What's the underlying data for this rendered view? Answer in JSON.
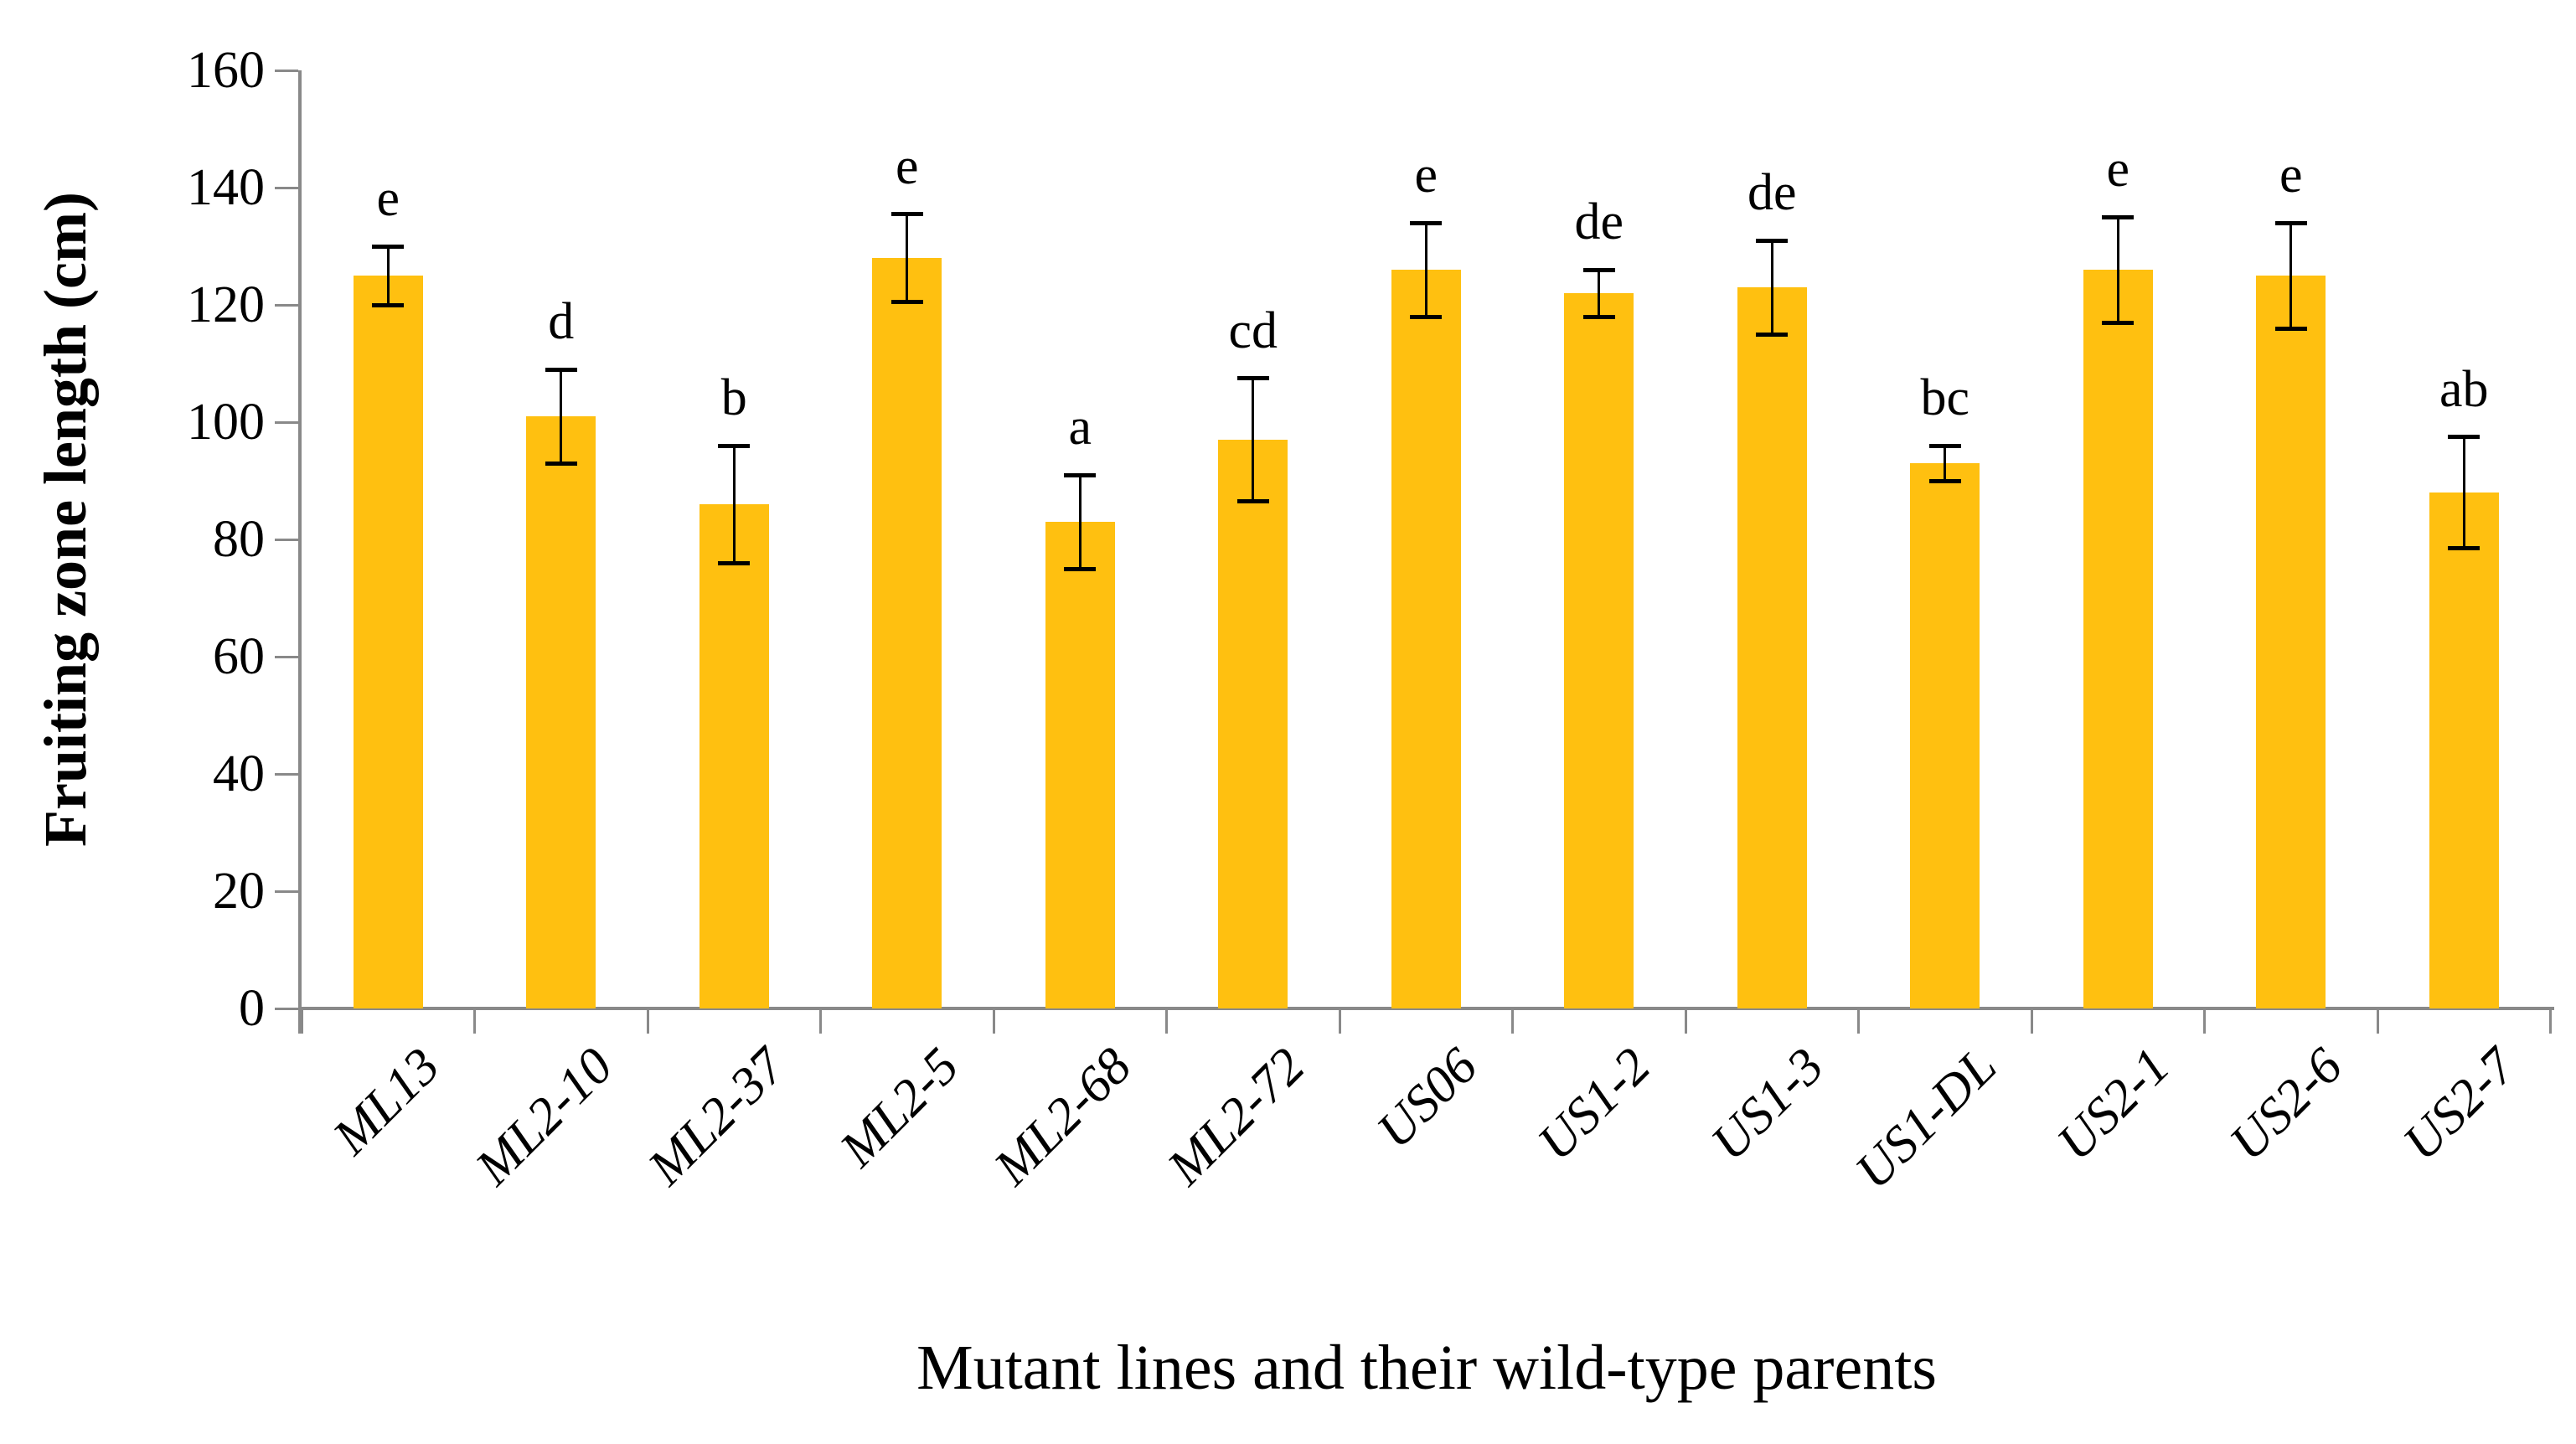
{
  "chart_data": {
    "type": "bar",
    "title": "",
    "xlabel": "Mutant lines and their wild-type parents",
    "ylabel": "Fruiting zone length (cm)",
    "categories": [
      "ML13",
      "ML2-10",
      "ML2-37",
      "ML2-5",
      "ML2-68",
      "ML2-72",
      "US06",
      "US1-2",
      "US1-3",
      "US1-DL",
      "US2-1",
      "US2-6",
      "US2-7"
    ],
    "values": [
      125,
      101,
      86,
      128,
      83,
      97,
      126,
      122,
      123,
      93,
      126,
      125,
      88
    ],
    "error_bars": [
      5,
      8,
      10,
      7.5,
      8,
      10.5,
      8,
      4,
      8,
      3,
      9,
      9,
      9.5
    ],
    "significance_letters": [
      "e",
      "d",
      "b",
      "e",
      "a",
      "cd",
      "e",
      "de",
      "de",
      "bc",
      "e",
      "e",
      "ab"
    ],
    "ylim": [
      0,
      160
    ],
    "ytick_step": 20,
    "ytick_labels": [
      "0",
      "20",
      "40",
      "60",
      "80",
      "100",
      "120",
      "140",
      "160"
    ],
    "grid": false,
    "legend": "none",
    "bar_color": "#FFC010",
    "axis_color": "#898989",
    "error_bar_color": "#000000",
    "text_color": "#000000"
  }
}
